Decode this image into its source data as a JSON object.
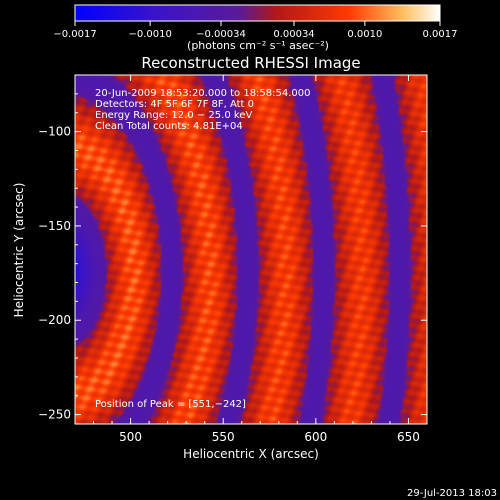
{
  "chart_data": {
    "type": "heatmap",
    "title": "Reconstructed RHESSI Image",
    "xlabel": "Heliocentric X (arcsec)",
    "ylabel": "Heliocentric Y (arcsec)",
    "xlim": [
      470,
      660
    ],
    "ylim": [
      -255,
      -70
    ],
    "xticks": [
      500,
      550,
      600,
      650
    ],
    "yticks": [
      -100,
      -150,
      -200,
      -250
    ],
    "colorbar": {
      "label": "(photons cm⁻² s⁻¹ asec⁻²)",
      "min": -0.0017,
      "max": 0.0017,
      "ticks": [
        -0.0017,
        -0.001,
        -0.00034,
        0.00034,
        0.001,
        0.0017
      ],
      "tick_labels": [
        "−0.0017",
        "−0.0010",
        "−0.00034",
        "0.00034",
        "0.0010",
        "0.0017"
      ]
    },
    "info_lines": [
      "20-Jun-2009 18:53:20.000 to 18:58:54.000",
      "Detectors: 4F 5F 6F 7F 8F, Att 0",
      "Energy Range: 12.0 − 25.0 keV",
      "Clean    Total counts: 4.81E+04"
    ],
    "peak_label": "Position of Peak = [551,−242]",
    "timestamp": "29-Jul-2013 18:03",
    "grid": false,
    "colormap": "blue-purple-red-yellow-white"
  }
}
